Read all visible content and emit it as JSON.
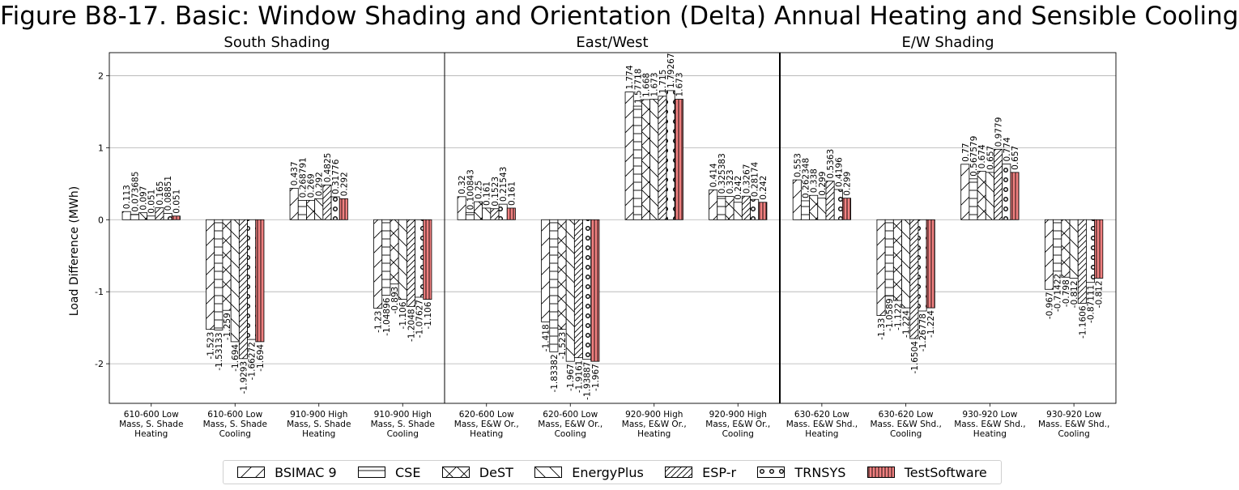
{
  "chart_data": {
    "type": "bar",
    "title": "Figure B8-17. Basic: Window Shading and Orientation (Delta) Annual Heating and Sensible Cooling",
    "ylabel": "Load Difference (MWh)",
    "ylim": [
      -2.55,
      2.32
    ],
    "yticks": [
      -2,
      -1,
      0,
      1,
      2
    ],
    "grid": true,
    "legend_position": "bottom",
    "series": [
      {
        "name": "BSIMAC 9",
        "pattern": "diag-fwd",
        "color": "#ffffff"
      },
      {
        "name": "CSE",
        "pattern": "horizontal",
        "color": "#ffffff"
      },
      {
        "name": "DeST",
        "pattern": "cross",
        "color": "#ffffff"
      },
      {
        "name": "EnergyPlus",
        "pattern": "diag-back",
        "color": "#ffffff"
      },
      {
        "name": "ESP-r",
        "pattern": "diag-dense",
        "color": "#ffffff"
      },
      {
        "name": "TRNSYS",
        "pattern": "circles",
        "color": "#ffffff"
      },
      {
        "name": "TestSoftware",
        "pattern": "vertical",
        "color": "#f08080"
      }
    ],
    "panels": [
      {
        "title": "South Shading",
        "groups": [
          {
            "label": [
              "610-600 Low",
              "Mass, S. Shade",
              "Heating"
            ],
            "values": [
              0.113,
              0.073685,
              0.097,
              0.051,
              0.165,
              0.08851,
              0.051
            ],
            "value_labels": [
              "0.113",
              "0.073685",
              "0.097",
              "0.051",
              "0.165",
              "0.08851",
              "0.051"
            ]
          },
          {
            "label": [
              "610-600 Low",
              "Mass, S. Shade",
              "Cooling"
            ],
            "values": [
              -1.523,
              -1.53133,
              -1.259,
              -1.694,
              -1.9293,
              -1.66272,
              -1.694
            ],
            "value_labels": [
              "-1.523",
              "-1.53133",
              "-1.259",
              "-1.694",
              "-1.9293",
              "-1.66272",
              "-1.694"
            ]
          },
          {
            "label": [
              "910-900 High",
              "Mass, S. Shade",
              "Heating"
            ],
            "values": [
              0.437,
              0.268791,
              0.269,
              0.292,
              0.4825,
              0.31776,
              0.292
            ],
            "value_labels": [
              "0.437",
              "0.268791",
              "0.269",
              "0.292",
              "0.4825",
              "0.31776",
              "0.292"
            ]
          },
          {
            "label": [
              "910-900 High",
              "Mass, S. Shade",
              "Cooling"
            ],
            "values": [
              -1.23,
              -1.04896,
              -0.893,
              -1.106,
              -1.2048,
              -1.07627,
              -1.106
            ],
            "value_labels": [
              "-1.23",
              "-1.04896",
              "-0.893",
              "-1.106",
              "-1.2048",
              "-1.07627",
              "-1.106"
            ]
          }
        ]
      },
      {
        "title": "East/West",
        "groups": [
          {
            "label": [
              "620-600 Low",
              "Mass, E&W Or.,",
              "Heating"
            ],
            "values": [
              0.32,
              0.100843,
              0.25,
              0.161,
              0.1523,
              0.21543,
              0.161
            ],
            "value_labels": [
              "0.32",
              "0.100843",
              "0.25",
              "0.161",
              "0.1523",
              "0.21543",
              "0.161"
            ]
          },
          {
            "label": [
              "620-600 Low",
              "Mass, E&W Or.,",
              "Cooling"
            ],
            "values": [
              -1.418,
              -1.83382,
              -1.523,
              -1.967,
              -1.9161,
              -1.93887,
              -1.967
            ],
            "value_labels": [
              "-1.418",
              "-1.83382",
              "-1.523",
              "-1.967",
              "-1.9161",
              "-1.93887",
              "-1.967"
            ]
          },
          {
            "label": [
              "920-900 High",
              "Mass, E&W Or.,",
              "Heating"
            ],
            "values": [
              1.774,
              1.57718,
              1.668,
              1.673,
              1.715,
              1.79267,
              1.673
            ],
            "value_labels": [
              "1.774",
              "1.57718",
              "1.668",
              "1.673",
              "1.715",
              "1.79267",
              "1.673"
            ]
          },
          {
            "label": [
              "920-900 High",
              "Mass, E&W Or.,",
              "Cooling"
            ],
            "values": [
              0.414,
              0.325383,
              0.323,
              0.242,
              0.3267,
              0.28174,
              0.242
            ],
            "value_labels": [
              "0.414",
              "0.325383",
              "0.323",
              "0.242",
              "0.3267",
              "0.28174",
              "0.242"
            ]
          }
        ]
      },
      {
        "title": "E/W Shading",
        "groups": [
          {
            "label": [
              "630-620 Low",
              "Mass. E&W Shd.,",
              "Heating"
            ],
            "values": [
              0.553,
              0.262348,
              0.338,
              0.299,
              0.5363,
              0.4196,
              0.299
            ],
            "value_labels": [
              "0.553",
              "0.262348",
              "0.338",
              "0.299",
              "0.5363",
              "0.4196",
              "0.299"
            ]
          },
          {
            "label": [
              "630-620 Low",
              "Mass. E&W Shd.,",
              "Cooling"
            ],
            "values": [
              -1.33,
              -1.0589,
              -1.122,
              -1.224,
              -1.6504,
              -1.26778,
              -1.224
            ],
            "value_labels": [
              "-1.33",
              "-1.0589",
              "-1.122",
              "-1.224",
              "-1.6504",
              "-1.26778",
              "-1.224"
            ]
          },
          {
            "label": [
              "930-920 Low",
              "Mass. E&W Shd.,",
              "Heating"
            ],
            "values": [
              0.77,
              0.567579,
              0.674,
              0.657,
              0.9779,
              0.774,
              0.657
            ],
            "value_labels": [
              "0.77",
              "0.567579",
              "0.674",
              "0.657",
              "0.9779",
              "0.774",
              "0.657"
            ]
          },
          {
            "label": [
              "930-920 Low",
              "Mass. E&W Shd.,",
              "Cooling"
            ],
            "values": [
              -0.967,
              -0.71422,
              -0.798,
              -0.812,
              -1.1606,
              -0.87111,
              -0.812
            ],
            "value_labels": [
              "-0.967",
              "-0.71422",
              "-0.798",
              "-0.812",
              "-1.1606",
              "-0.87111",
              "-0.812"
            ]
          }
        ]
      }
    ]
  }
}
